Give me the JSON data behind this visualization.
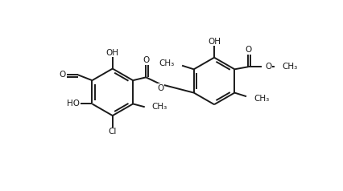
{
  "background_color": "#ffffff",
  "line_color": "#1a1a1a",
  "line_width": 1.4,
  "font_size": 7.5,
  "fig_width": 4.26,
  "fig_height": 2.38,
  "dpi": 100,
  "xlim": [
    0,
    8.52
  ],
  "ylim": [
    0,
    4.76
  ]
}
